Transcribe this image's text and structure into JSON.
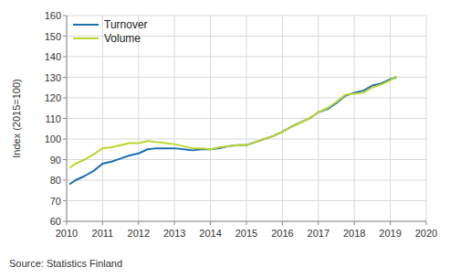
{
  "chart_data": {
    "type": "line",
    "y_label": "Index (2015=100)",
    "source": "Source: Statistics Finland",
    "x": [
      2010.08,
      2010.25,
      2010.5,
      2010.75,
      2011.0,
      2011.25,
      2011.5,
      2011.75,
      2012.0,
      2012.25,
      2012.5,
      2012.75,
      2013.0,
      2013.25,
      2013.5,
      2013.75,
      2014.0,
      2014.25,
      2014.5,
      2014.75,
      2015.0,
      2015.25,
      2015.5,
      2015.75,
      2016.0,
      2016.25,
      2016.5,
      2016.75,
      2017.0,
      2017.25,
      2017.5,
      2017.75,
      2018.0,
      2018.25,
      2018.5,
      2018.75,
      2019.0,
      2019.17
    ],
    "series": [
      {
        "name": "Turnover",
        "color": "#1a6fb0",
        "values": [
          78,
          80,
          82,
          84.5,
          88,
          89,
          90.5,
          92,
          93,
          95,
          95.5,
          95.5,
          95.5,
          95,
          94.5,
          95,
          95,
          95.5,
          96.5,
          97,
          97,
          98.5,
          100,
          101.5,
          103.5,
          106,
          108,
          110,
          113,
          114.5,
          117.5,
          121,
          122.5,
          123.5,
          126,
          127,
          129,
          130
        ]
      },
      {
        "name": "Volume",
        "color": "#bcd630",
        "values": [
          86,
          88,
          90,
          92.5,
          95.5,
          96,
          97,
          98,
          98,
          99,
          98.5,
          98,
          97.5,
          96.5,
          95.5,
          95.5,
          95,
          96,
          96.5,
          97,
          97,
          98.5,
          100,
          101.5,
          103.5,
          106,
          108,
          110,
          113,
          115,
          118,
          121.5,
          122,
          122.5,
          125,
          126.5,
          128.5,
          130.5
        ]
      }
    ],
    "xlim": [
      2010,
      2020
    ],
    "xticks": [
      2010,
      2011,
      2012,
      2013,
      2014,
      2015,
      2016,
      2017,
      2018,
      2019,
      2020
    ],
    "ylim": [
      60,
      160
    ],
    "yticks": [
      60,
      70,
      80,
      90,
      100,
      110,
      120,
      130,
      140,
      150,
      160
    ],
    "grid": true,
    "legend": "upper left"
  }
}
